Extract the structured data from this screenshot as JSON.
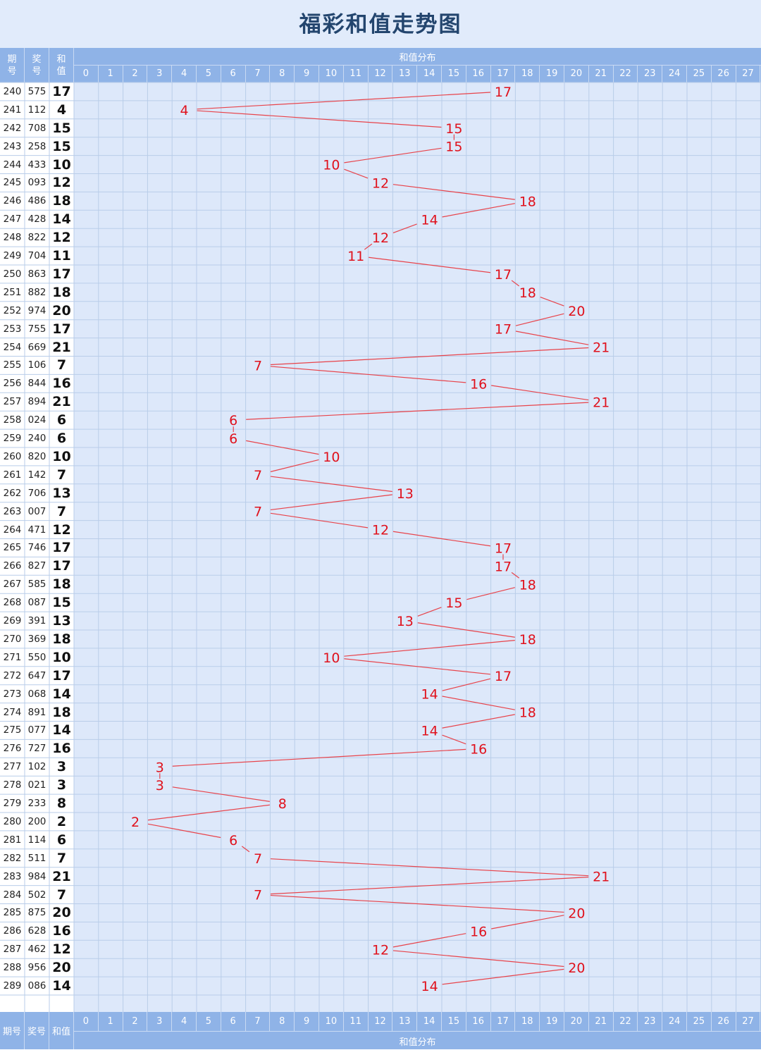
{
  "title": "福彩和值走势图",
  "colors": {
    "header": "#8fb3e7",
    "line": "#e8434a",
    "label": "#e0111c",
    "grid": "#b9cde9",
    "background": "#dde8fa"
  },
  "header_top": {
    "period": "期号",
    "draw": "奖号",
    "sum": "和值",
    "group": "和值分布"
  },
  "header_bottom": {
    "period": "期号",
    "draw": "奖号",
    "sum": "和值",
    "group": "和值分布"
  },
  "chart_data": {
    "type": "line",
    "x_categories": [
      "0",
      "1",
      "2",
      "3",
      "4",
      "5",
      "6",
      "7",
      "8",
      "9",
      "10",
      "11",
      "12",
      "13",
      "14",
      "15",
      "16",
      "17",
      "18",
      "19",
      "20",
      "21",
      "22",
      "23",
      "24",
      "25",
      "26",
      "27"
    ],
    "rows": [
      {
        "period": "240",
        "draw": "575",
        "sum": 17
      },
      {
        "period": "241",
        "draw": "112",
        "sum": 4
      },
      {
        "period": "242",
        "draw": "708",
        "sum": 15
      },
      {
        "period": "243",
        "draw": "258",
        "sum": 15
      },
      {
        "period": "244",
        "draw": "433",
        "sum": 10
      },
      {
        "period": "245",
        "draw": "093",
        "sum": 12
      },
      {
        "period": "246",
        "draw": "486",
        "sum": 18
      },
      {
        "period": "247",
        "draw": "428",
        "sum": 14
      },
      {
        "period": "248",
        "draw": "822",
        "sum": 12
      },
      {
        "period": "249",
        "draw": "704",
        "sum": 11
      },
      {
        "period": "250",
        "draw": "863",
        "sum": 17
      },
      {
        "period": "251",
        "draw": "882",
        "sum": 18
      },
      {
        "period": "252",
        "draw": "974",
        "sum": 20
      },
      {
        "period": "253",
        "draw": "755",
        "sum": 17
      },
      {
        "period": "254",
        "draw": "669",
        "sum": 21
      },
      {
        "period": "255",
        "draw": "106",
        "sum": 7
      },
      {
        "period": "256",
        "draw": "844",
        "sum": 16
      },
      {
        "period": "257",
        "draw": "894",
        "sum": 21
      },
      {
        "period": "258",
        "draw": "024",
        "sum": 6
      },
      {
        "period": "259",
        "draw": "240",
        "sum": 6
      },
      {
        "period": "260",
        "draw": "820",
        "sum": 10
      },
      {
        "period": "261",
        "draw": "142",
        "sum": 7
      },
      {
        "period": "262",
        "draw": "706",
        "sum": 13
      },
      {
        "period": "263",
        "draw": "007",
        "sum": 7
      },
      {
        "period": "264",
        "draw": "471",
        "sum": 12
      },
      {
        "period": "265",
        "draw": "746",
        "sum": 17
      },
      {
        "period": "266",
        "draw": "827",
        "sum": 17
      },
      {
        "period": "267",
        "draw": "585",
        "sum": 18
      },
      {
        "period": "268",
        "draw": "087",
        "sum": 15
      },
      {
        "period": "269",
        "draw": "391",
        "sum": 13
      },
      {
        "period": "270",
        "draw": "369",
        "sum": 18
      },
      {
        "period": "271",
        "draw": "550",
        "sum": 10
      },
      {
        "period": "272",
        "draw": "647",
        "sum": 17
      },
      {
        "period": "273",
        "draw": "068",
        "sum": 14
      },
      {
        "period": "274",
        "draw": "891",
        "sum": 18
      },
      {
        "period": "275",
        "draw": "077",
        "sum": 14
      },
      {
        "period": "276",
        "draw": "727",
        "sum": 16
      },
      {
        "period": "277",
        "draw": "102",
        "sum": 3
      },
      {
        "period": "278",
        "draw": "021",
        "sum": 3
      },
      {
        "period": "279",
        "draw": "233",
        "sum": 8
      },
      {
        "period": "280",
        "draw": "200",
        "sum": 2
      },
      {
        "period": "281",
        "draw": "114",
        "sum": 6
      },
      {
        "period": "282",
        "draw": "511",
        "sum": 7
      },
      {
        "period": "283",
        "draw": "984",
        "sum": 21
      },
      {
        "period": "284",
        "draw": "502",
        "sum": 7
      },
      {
        "period": "285",
        "draw": "875",
        "sum": 20
      },
      {
        "period": "286",
        "draw": "628",
        "sum": 16
      },
      {
        "period": "287",
        "draw": "462",
        "sum": 12
      },
      {
        "period": "288",
        "draw": "956",
        "sum": 20
      },
      {
        "period": "289",
        "draw": "086",
        "sum": 14
      }
    ]
  }
}
